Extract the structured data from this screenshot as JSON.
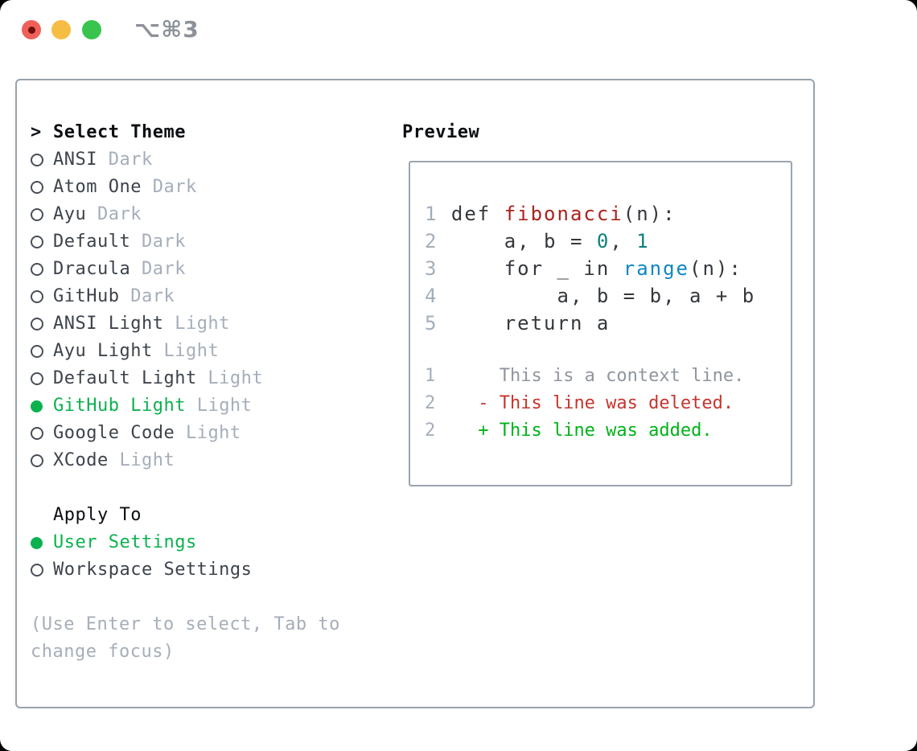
{
  "window": {
    "shortcut_label": "⌥⌘3",
    "traffic_lights": [
      {
        "name": "close",
        "color": "#f0605a"
      },
      {
        "name": "minimize",
        "color": "#f6bd45"
      },
      {
        "name": "zoom",
        "color": "#38c44e"
      }
    ]
  },
  "theme_panel": {
    "title_prompt": ">",
    "title": "Select Theme",
    "themes": [
      {
        "name": "ANSI",
        "variant": "Dark",
        "selected": false
      },
      {
        "name": "Atom One",
        "variant": "Dark",
        "selected": false
      },
      {
        "name": "Ayu",
        "variant": "Dark",
        "selected": false
      },
      {
        "name": "Default",
        "variant": "Dark",
        "selected": false
      },
      {
        "name": "Dracula",
        "variant": "Dark",
        "selected": false
      },
      {
        "name": "GitHub",
        "variant": "Dark",
        "selected": false
      },
      {
        "name": "ANSI Light",
        "variant": "Light",
        "selected": false
      },
      {
        "name": "Ayu Light",
        "variant": "Light",
        "selected": false
      },
      {
        "name": "Default Light",
        "variant": "Light",
        "selected": false
      },
      {
        "name": "GitHub Light",
        "variant": "Light",
        "selected": true
      },
      {
        "name": "Google Code",
        "variant": "Light",
        "selected": false
      },
      {
        "name": "XCode",
        "variant": "Light",
        "selected": false
      }
    ],
    "apply_to": {
      "title": "Apply To",
      "options": [
        {
          "name": "User Settings",
          "selected": true
        },
        {
          "name": "Workspace Settings",
          "selected": false
        }
      ]
    },
    "hint": "(Use Enter to select, Tab to change focus)"
  },
  "preview": {
    "title": "Preview",
    "python": [
      {
        "num": "1",
        "tokens": [
          [
            "def ",
            "k"
          ],
          [
            "fibonacci",
            "fn"
          ],
          [
            "(n):",
            "k"
          ]
        ]
      },
      {
        "num": "2",
        "tokens": [
          [
            "    a, b = ",
            "k"
          ],
          [
            "0",
            "num"
          ],
          [
            ", ",
            "k"
          ],
          [
            "1",
            "num"
          ]
        ]
      },
      {
        "num": "3",
        "tokens": [
          [
            "    for _ in ",
            "k"
          ],
          [
            "range",
            "builtin"
          ],
          [
            "(n):",
            "k"
          ]
        ]
      },
      {
        "num": "4",
        "tokens": [
          [
            "        a, b = b, a + b",
            "k"
          ]
        ]
      },
      {
        "num": "5",
        "tokens": [
          [
            "    return a",
            "k"
          ]
        ]
      }
    ],
    "diff": [
      {
        "num": "1",
        "tokens": [
          [
            "     This is a context line.",
            "ctx"
          ]
        ]
      },
      {
        "num": "2",
        "tokens": [
          [
            "   - This line was deleted.",
            "del"
          ]
        ]
      },
      {
        "num": "2",
        "tokens": [
          [
            "   + This line was added.",
            "add"
          ]
        ]
      }
    ]
  },
  "colors": {
    "accent_green": "#0cb14f",
    "muted_gray": "#a5aeba",
    "panel_border": "#98a2ad",
    "function_red": "#ab231d",
    "number_teal": "#0d8080",
    "builtin_blue": "#0e87c3",
    "diff_context": "#8f969e",
    "diff_deleted": "#c5352c",
    "diff_added": "#00b218"
  }
}
